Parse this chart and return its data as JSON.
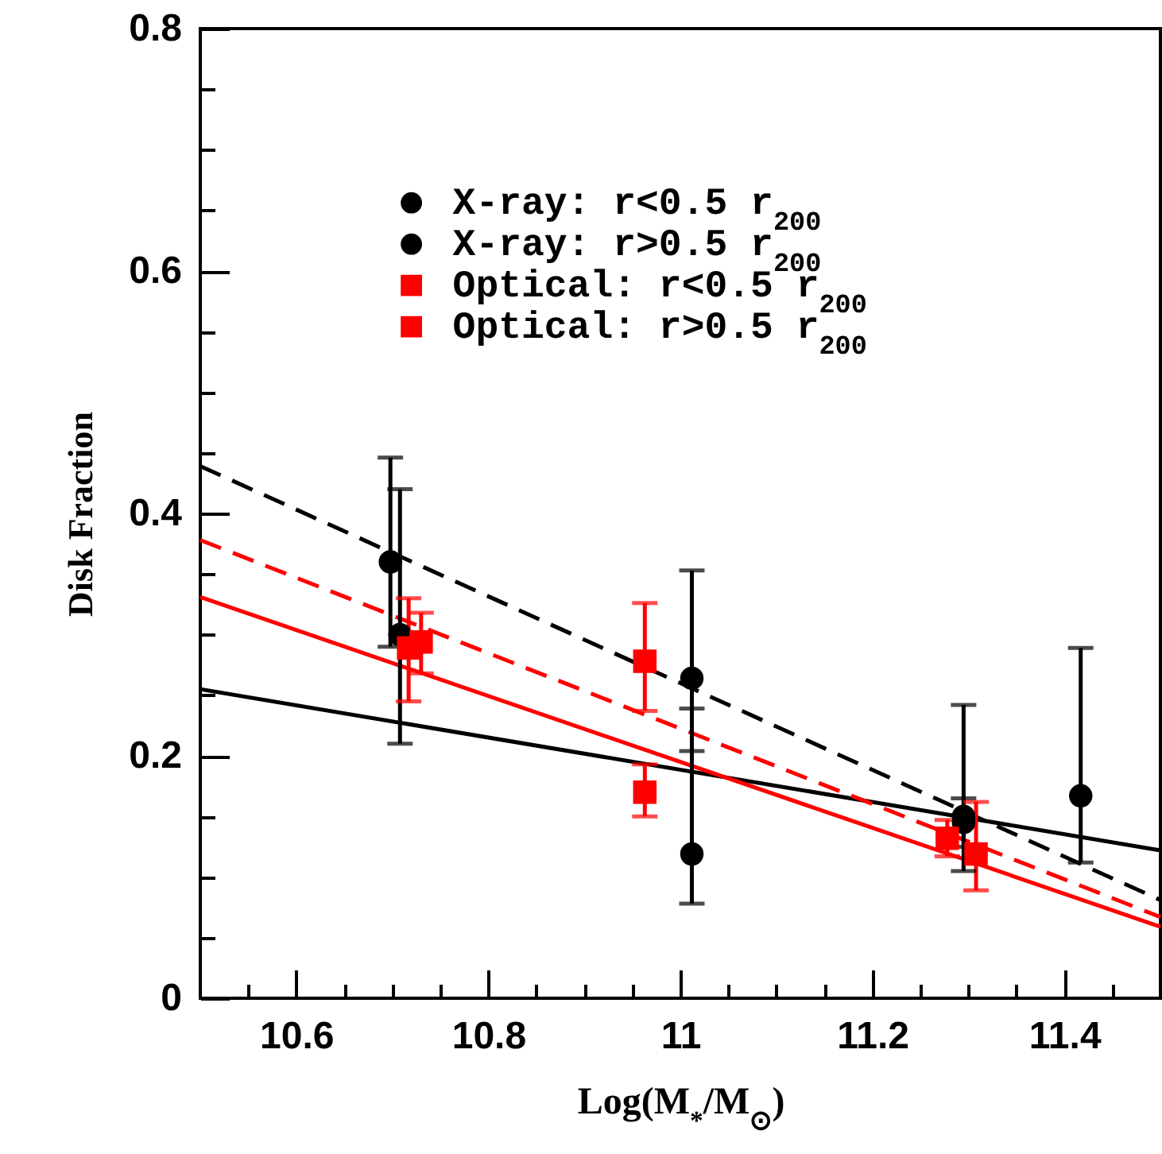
{
  "chart_data": {
    "type": "scatter",
    "xlabel": "Log(M$_{*}$/M$_{⊙}$)",
    "ylabel": "Disk Fraction",
    "xlim": [
      10.5,
      11.5
    ],
    "ylim": [
      0,
      0.8
    ],
    "xticks": [
      {
        "value": 10.55,
        "label": null
      },
      10.6,
      {
        "value": 10.65,
        "label": null
      },
      {
        "value": 10.7,
        "label": null
      },
      {
        "value": 10.75,
        "label": null
      },
      10.8,
      {
        "value": 10.85,
        "label": null
      },
      {
        "value": 10.9,
        "label": null
      },
      {
        "value": 10.95,
        "label": null
      },
      11,
      {
        "value": 11.05,
        "label": null
      },
      {
        "value": 11.1,
        "label": null
      },
      {
        "value": 11.15,
        "label": null
      },
      11.2,
      {
        "value": 11.25,
        "label": null
      },
      {
        "value": 11.3,
        "label": null
      },
      {
        "value": 11.35,
        "label": null
      },
      11.4,
      {
        "value": 11.45,
        "label": null
      }
    ],
    "yticks": [
      0,
      {
        "value": 0.05,
        "label": null
      },
      {
        "value": 0.1,
        "label": null
      },
      {
        "value": 0.15,
        "label": null
      },
      0.2,
      {
        "value": 0.25,
        "label": null
      },
      {
        "value": 0.3,
        "label": null
      },
      {
        "value": 0.35,
        "label": null
      },
      0.4,
      {
        "value": 0.45,
        "label": null
      },
      {
        "value": 0.5,
        "label": null
      },
      {
        "value": 0.55,
        "label": null
      },
      0.6,
      {
        "value": 0.65,
        "label": null
      },
      {
        "value": 0.7,
        "label": null
      },
      {
        "value": 0.75,
        "label": null
      },
      0.8
    ],
    "legend": "top",
    "grid": false,
    "series": [
      {
        "name": "X-ray: r<0.5 r$_{200}$",
        "color": "#000000",
        "marker": "circle",
        "x": [
          10.708,
          11.012,
          11.295,
          11.417
        ],
        "values": [
          0.3,
          0.119,
          0.15,
          0.167
        ],
        "errors": [
          [
            0.21,
            0.42
          ],
          [
            0.078,
            0.239
          ],
          [
            0.105,
            0.242
          ],
          [
            0.112,
            0.289
          ]
        ]
      },
      {
        "name": "X-ray: r>0.5 r$_{200}$",
        "color": "#000000",
        "marker": "circle",
        "x": [
          10.698,
          11.012,
          11.295
        ],
        "values": [
          0.36,
          0.264,
          0.145
        ],
        "errors": [
          [
            0.29,
            0.446
          ],
          [
            0.204,
            0.353
          ],
          [
            0.125,
            0.165
          ]
        ]
      },
      {
        "name": "Optical: r<0.5 r$_{200}$",
        "color": "#ff0000",
        "marker": "square",
        "x": [
          10.73,
          10.963,
          11.278
        ],
        "values": [
          0.294,
          0.17,
          0.132
        ],
        "errors": [
          [
            0.268,
            0.318
          ],
          [
            0.15,
            0.193
          ],
          [
            0.117,
            0.147
          ]
        ]
      },
      {
        "name": "Optical: r>0.5 r$_{200}$",
        "color": "#ff0000",
        "marker": "square",
        "x": [
          10.717,
          10.963,
          11.308
        ],
        "values": [
          0.289,
          0.278,
          0.119
        ],
        "errors": [
          [
            0.245,
            0.33
          ],
          [
            0.237,
            0.326
          ],
          [
            0.089,
            0.162
          ]
        ]
      },
      {
        "type": "line",
        "color": "#000000",
        "line_style": "solid",
        "x": [
          10.5,
          11.5
        ],
        "values": [
          0.255,
          0.122
        ]
      },
      {
        "type": "line",
        "color": "#000000",
        "line_style": "dashed",
        "x": [
          10.5,
          11.5
        ],
        "values": [
          0.439,
          0.081
        ]
      },
      {
        "type": "line",
        "color": "#ff0000",
        "line_style": "solid",
        "x": [
          10.5,
          11.5
        ],
        "values": [
          0.331,
          0.059
        ]
      },
      {
        "type": "line",
        "color": "#ff0000",
        "line_style": "dashed",
        "x": [
          10.5,
          11.5
        ],
        "values": [
          0.378,
          0.067
        ]
      }
    ]
  }
}
